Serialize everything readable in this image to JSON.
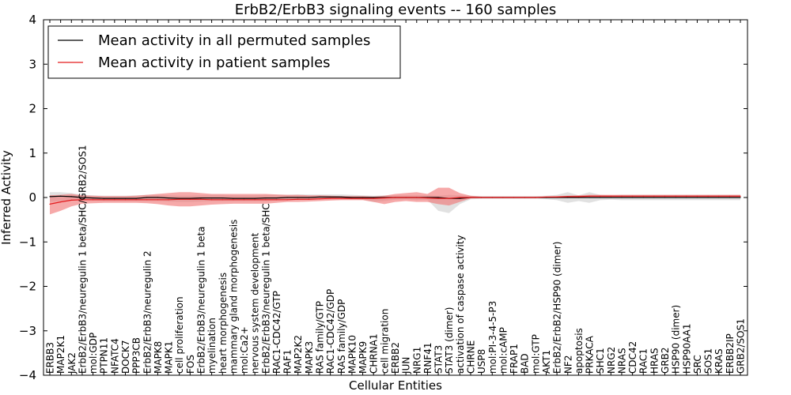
{
  "chart_data": {
    "type": "line",
    "title": "ErbB2/ErbB3 signaling events -- 160 samples",
    "xlabel": "Cellular Entities",
    "ylabel": "Inferred Activity",
    "ylim": [
      -4,
      4
    ],
    "yticks": [
      -4,
      -3,
      -2,
      -1,
      0,
      1,
      2,
      3,
      4
    ],
    "ytick_labels": [
      "−4",
      "−3",
      "−2",
      "−1",
      "0",
      "1",
      "2",
      "3",
      "4"
    ],
    "grid": false,
    "legend_position": "top-left",
    "categories": [
      "ERBB3",
      "MAP2K1",
      "JAK2",
      "ErbB2/ErbB3/neuregulin 1 beta/SHC/GRB2/SOS1",
      "mol:GDP",
      "PTPN11",
      "NFATC4",
      "DOCK7",
      "PPP3CB",
      "ErbB2/ErbB3/neuregulin 2",
      "MAPK8",
      "MAPK1",
      "cell proliferation",
      "FOS",
      "ErbB2/ErbB3/neuregulin 1 beta",
      "myelination",
      "heart morphogenesis",
      "mammary gland morphogenesis",
      "mol:Ca2+",
      "nervous system development",
      "ErbB2/ErbB3/neuregulin 1 beta/SHC",
      "RAC1-CDC42/GTP",
      "RAF1",
      "MAP2K2",
      "MAPK3",
      "RAS family/GTP",
      "RAC1-CDC42/GDP",
      "RAS family/GDP",
      "MAPK10",
      "MAPK9",
      "CHRNA1",
      "cell migration",
      "ERBB2",
      "JUN",
      "NRG1",
      "RNF41",
      "STAT3",
      "STAT3 (dimer)",
      "activation of caspase activity",
      "CHRNE",
      "USP8",
      "mol:PI-3-4-5-P3",
      "mol:cAMP",
      "FRAP1",
      "BAD",
      "mol:GTP",
      "AKT1",
      "ErbB2/ErbB2/HSP90 (dimer)",
      "NF2",
      "apoptosis",
      "PRKACA",
      "SHC1",
      "NRG2",
      "NRAS",
      "CDC42",
      "RAC1",
      "HRAS",
      "GRB2",
      "HSP90 (dimer)",
      "HSP90AA1",
      "SRC",
      "SOS1",
      "KRAS",
      "ERBB2IP",
      "GRB2/SOS1"
    ],
    "series": [
      {
        "name": "Mean activity in all permuted samples",
        "color": "#000000",
        "band_color": "#bdbdbd",
        "values": [
          0.02,
          0.03,
          0.02,
          0.0,
          -0.01,
          -0.02,
          -0.02,
          -0.02,
          -0.02,
          0.0,
          0.0,
          -0.01,
          -0.02,
          -0.02,
          -0.01,
          -0.01,
          -0.01,
          -0.02,
          -0.02,
          -0.02,
          -0.01,
          -0.01,
          0.0,
          0.0,
          0.0,
          0.01,
          0.01,
          0.01,
          0.0,
          0.0,
          0.0,
          0.0,
          0.0,
          0.0,
          0.0,
          0.0,
          0.0,
          -0.02,
          -0.02,
          0.0,
          0.0,
          0.0,
          0.0,
          0.0,
          0.0,
          0.0,
          0.0,
          0.0,
          0.0,
          0.0,
          0.0,
          0.0,
          0.0,
          0.0,
          0.0,
          0.0,
          0.0,
          0.0,
          0.0,
          0.0,
          0.0,
          0.0,
          0.0,
          0.0,
          0.0
        ],
        "lower": [
          -0.1,
          -0.08,
          -0.06,
          -0.06,
          -0.07,
          -0.08,
          -0.08,
          -0.08,
          -0.08,
          -0.08,
          -0.08,
          -0.09,
          -0.1,
          -0.1,
          -0.09,
          -0.08,
          -0.08,
          -0.08,
          -0.08,
          -0.08,
          -0.08,
          -0.07,
          -0.06,
          -0.05,
          -0.04,
          -0.03,
          -0.03,
          -0.03,
          -0.04,
          -0.05,
          -0.1,
          -0.08,
          -0.05,
          -0.04,
          -0.06,
          -0.05,
          -0.3,
          -0.35,
          -0.15,
          -0.04,
          -0.03,
          -0.03,
          -0.03,
          -0.03,
          -0.03,
          -0.03,
          -0.04,
          -0.06,
          -0.12,
          -0.08,
          -0.12,
          -0.06,
          -0.05,
          -0.06,
          -0.06,
          -0.06,
          -0.06,
          -0.06,
          -0.06,
          -0.06,
          -0.06,
          -0.06,
          -0.06,
          -0.06,
          -0.06
        ],
        "upper": [
          0.12,
          0.12,
          0.1,
          0.06,
          0.05,
          0.04,
          0.04,
          0.04,
          0.05,
          0.06,
          0.06,
          0.05,
          0.04,
          0.04,
          0.05,
          0.06,
          0.06,
          0.05,
          0.05,
          0.05,
          0.06,
          0.06,
          0.06,
          0.07,
          0.07,
          0.07,
          0.07,
          0.07,
          0.06,
          0.05,
          0.04,
          0.05,
          0.05,
          0.05,
          0.05,
          0.05,
          0.04,
          0.06,
          0.05,
          0.04,
          0.03,
          0.03,
          0.03,
          0.03,
          0.03,
          0.03,
          0.04,
          0.06,
          0.12,
          0.05,
          0.12,
          0.06,
          0.05,
          0.06,
          0.06,
          0.06,
          0.06,
          0.06,
          0.06,
          0.06,
          0.06,
          0.06,
          0.06,
          0.06,
          0.06
        ]
      },
      {
        "name": "Mean activity in patient samples",
        "color": "#e31a1c",
        "band_color": "#f07070",
        "values": [
          -0.15,
          -0.1,
          -0.06,
          -0.05,
          -0.05,
          -0.05,
          -0.05,
          -0.05,
          -0.05,
          -0.05,
          -0.05,
          -0.05,
          -0.04,
          -0.04,
          -0.04,
          -0.05,
          -0.05,
          -0.05,
          -0.05,
          -0.05,
          -0.05,
          -0.05,
          -0.05,
          -0.04,
          -0.04,
          -0.03,
          -0.02,
          -0.02,
          -0.02,
          -0.02,
          -0.02,
          -0.01,
          0.0,
          0.0,
          0.0,
          -0.01,
          -0.02,
          -0.02,
          0.0,
          0.0,
          0.0,
          0.0,
          0.0,
          0.0,
          0.0,
          0.0,
          0.01,
          0.01,
          0.02,
          0.02,
          0.03,
          0.03,
          0.03,
          0.03,
          0.03,
          0.03,
          0.03,
          0.03,
          0.03,
          0.03,
          0.03,
          0.03,
          0.03,
          0.03,
          0.03
        ],
        "lower": [
          -0.38,
          -0.3,
          -0.2,
          -0.14,
          -0.13,
          -0.12,
          -0.12,
          -0.12,
          -0.12,
          -0.13,
          -0.15,
          -0.18,
          -0.2,
          -0.2,
          -0.18,
          -0.16,
          -0.15,
          -0.14,
          -0.14,
          -0.14,
          -0.14,
          -0.12,
          -0.1,
          -0.1,
          -0.09,
          -0.08,
          -0.07,
          -0.06,
          -0.06,
          -0.06,
          -0.1,
          -0.15,
          -0.1,
          -0.08,
          -0.1,
          -0.1,
          -0.15,
          -0.18,
          -0.1,
          -0.02,
          -0.01,
          -0.01,
          -0.01,
          -0.01,
          -0.01,
          -0.01,
          0.0,
          0.0,
          0.0,
          0.0,
          0.01,
          0.01,
          0.01,
          0.01,
          0.01,
          0.01,
          0.01,
          0.01,
          0.01,
          0.01,
          0.01,
          0.01,
          0.01,
          0.01,
          0.01
        ],
        "upper": [
          0.05,
          0.06,
          0.08,
          0.05,
          0.04,
          0.03,
          0.03,
          0.03,
          0.04,
          0.06,
          0.08,
          0.1,
          0.12,
          0.12,
          0.1,
          0.08,
          0.08,
          0.08,
          0.08,
          0.08,
          0.08,
          0.07,
          0.06,
          0.06,
          0.05,
          0.05,
          0.04,
          0.03,
          0.03,
          0.03,
          0.02,
          0.04,
          0.08,
          0.1,
          0.12,
          0.08,
          0.22,
          0.22,
          0.1,
          0.04,
          0.02,
          0.02,
          0.02,
          0.02,
          0.02,
          0.02,
          0.02,
          0.03,
          0.04,
          0.05,
          0.06,
          0.06,
          0.06,
          0.06,
          0.06,
          0.06,
          0.06,
          0.06,
          0.06,
          0.06,
          0.06,
          0.06,
          0.06,
          0.06,
          0.06
        ]
      }
    ]
  }
}
